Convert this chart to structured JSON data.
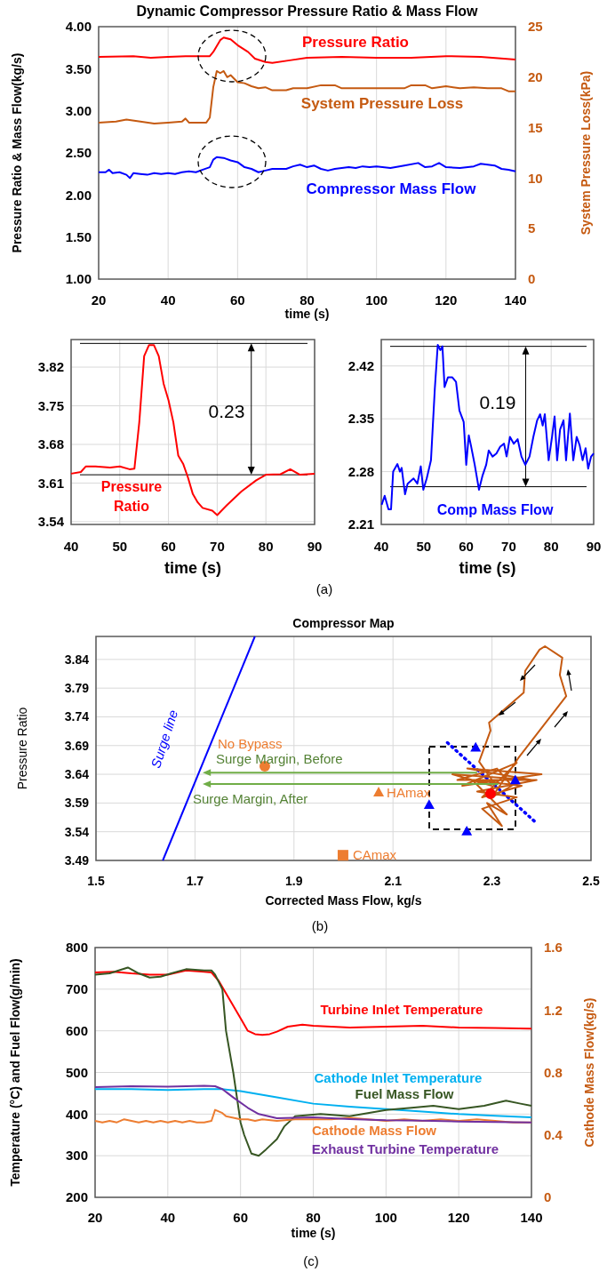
{
  "chart_data": [
    {
      "type": "line",
      "title": "Dynamic Compressor Pressure Ratio & Mass Flow",
      "xlabel": "time (s)",
      "ylabel": "Pressure Ratio & Mass Flow(kg/s)",
      "y2label": "System Pressure Loss(kPa)",
      "xlim": [
        20,
        140
      ],
      "xticks": [
        20,
        40,
        60,
        80,
        100,
        120,
        140
      ],
      "ylim": [
        1,
        4
      ],
      "yticks": [
        {
          "value": 1,
          "label": "1.00"
        },
        {
          "value": 1.5,
          "label": "1.50"
        },
        {
          "value": 2,
          "label": "2.00"
        },
        {
          "value": 2.5,
          "label": "2.50"
        },
        {
          "value": 3,
          "label": "3.00"
        },
        {
          "value": 3.5,
          "label": "3.50"
        },
        {
          "value": 4,
          "label": "4.00"
        }
      ],
      "y2lim": [
        0,
        25
      ],
      "y2ticks": [
        0,
        5,
        10,
        15,
        20,
        25
      ],
      "grid": "x",
      "series": [
        {
          "name": "Pressure Ratio",
          "color": "#ff0000",
          "x": [
            20,
            30,
            35,
            40,
            45,
            52,
            53,
            55,
            56,
            58,
            60,
            63,
            65,
            68,
            70,
            75,
            80,
            90,
            100,
            110,
            120,
            130,
            140
          ],
          "values": [
            3.64,
            3.65,
            3.63,
            3.64,
            3.65,
            3.65,
            3.7,
            3.84,
            3.87,
            3.85,
            3.78,
            3.7,
            3.62,
            3.58,
            3.57,
            3.6,
            3.63,
            3.64,
            3.63,
            3.63,
            3.65,
            3.64,
            3.61
          ]
        },
        {
          "name": "System Pressure Loss",
          "color": "#c55a11",
          "axis": "y2",
          "x": [
            20,
            25,
            28,
            32,
            36,
            40,
            44,
            45,
            46,
            51,
            52,
            53,
            54,
            55,
            56,
            57,
            58,
            60,
            62,
            64,
            66,
            68,
            70,
            74,
            76,
            80,
            84,
            88,
            90,
            100,
            108,
            110,
            114,
            116,
            120,
            124,
            128,
            132,
            136,
            138,
            140
          ],
          "values": [
            15.5,
            15.6,
            15.8,
            15.6,
            15.4,
            15.5,
            15.6,
            15.9,
            15.5,
            15.5,
            16,
            19,
            20.6,
            20.4,
            20.6,
            20,
            20.2,
            19.5,
            19.4,
            19.1,
            18.9,
            19,
            18.7,
            18.7,
            18.9,
            18.9,
            19.2,
            19.2,
            18.9,
            18.9,
            18.9,
            19.2,
            19.2,
            18.9,
            19.1,
            18.9,
            19,
            18.9,
            18.9,
            18.6,
            18.6
          ]
        },
        {
          "name": "Compressor Mass Flow",
          "color": "#0000ff",
          "x": [
            20,
            22,
            23,
            24,
            26,
            28,
            29,
            30,
            32,
            34,
            36,
            38,
            40,
            42,
            44,
            46,
            48,
            50,
            52,
            53,
            54,
            56,
            58,
            60,
            62,
            64,
            66,
            68,
            70,
            72,
            74,
            76,
            78,
            80,
            82,
            84,
            86,
            88,
            90,
            92,
            94,
            96,
            98,
            100,
            104,
            108,
            112,
            114,
            116,
            118,
            120,
            124,
            128,
            130,
            132,
            134,
            136,
            138,
            140
          ],
          "values": [
            2.27,
            2.27,
            2.3,
            2.26,
            2.27,
            2.24,
            2.2,
            2.26,
            2.25,
            2.24,
            2.26,
            2.25,
            2.26,
            2.25,
            2.27,
            2.28,
            2.27,
            2.3,
            2.33,
            2.42,
            2.45,
            2.44,
            2.41,
            2.39,
            2.33,
            2.31,
            2.27,
            2.29,
            2.31,
            2.31,
            2.31,
            2.34,
            2.36,
            2.33,
            2.35,
            2.31,
            2.29,
            2.31,
            2.32,
            2.33,
            2.32,
            2.34,
            2.33,
            2.34,
            2.32,
            2.35,
            2.38,
            2.33,
            2.34,
            2.38,
            2.33,
            2.32,
            2.34,
            2.37,
            2.36,
            2.35,
            2.31,
            2.3,
            2.28
          ]
        }
      ]
    },
    {
      "type": "line",
      "xlabel": "time (s)",
      "xlim": [
        40,
        90
      ],
      "xticks": [
        40,
        50,
        60,
        70,
        80,
        90
      ],
      "ylim": [
        3.535,
        3.87
      ],
      "yticks": [
        3.54,
        3.61,
        3.68,
        3.75,
        3.82
      ],
      "grid": true,
      "ref_lines": [
        {
          "axis": "y",
          "value": 3.863
        },
        {
          "axis": "y",
          "value": 3.625
        }
      ],
      "annotations": [
        "0.23",
        "(a)"
      ],
      "series": [
        {
          "name": "Pressure Ratio",
          "color": "#ff0000",
          "x": [
            40,
            42,
            43,
            45,
            48,
            50,
            52,
            53,
            54,
            55,
            56,
            57,
            58,
            59,
            60,
            61,
            62,
            63,
            64,
            65,
            66,
            67,
            69,
            70,
            72,
            75,
            78,
            80,
            83,
            85,
            87,
            90
          ],
          "values": [
            3.627,
            3.63,
            3.64,
            3.64,
            3.638,
            3.64,
            3.635,
            3.636,
            3.72,
            3.84,
            3.86,
            3.86,
            3.84,
            3.79,
            3.76,
            3.72,
            3.66,
            3.645,
            3.62,
            3.59,
            3.575,
            3.565,
            3.56,
            3.552,
            3.57,
            3.595,
            3.615,
            3.625,
            3.626,
            3.635,
            3.625,
            3.627
          ]
        }
      ]
    },
    {
      "type": "line",
      "xlabel": "time (s)",
      "xlim": [
        40,
        90
      ],
      "xticks": [
        40,
        50,
        60,
        70,
        80,
        90
      ],
      "ylim": [
        2.21,
        2.455
      ],
      "yticks": [
        2.21,
        2.28,
        2.35,
        2.42
      ],
      "grid": true,
      "ref_lines": [
        {
          "axis": "y",
          "value": 2.446
        },
        {
          "axis": "y",
          "value": 2.26
        }
      ],
      "annotations": [
        "0.19"
      ],
      "series": [
        {
          "name": "Comp Mass Flow",
          "color": "#0000ff",
          "x": [
            40.1,
            40.8,
            41.7,
            42.3,
            42.8,
            43.8,
            44.4,
            44.8,
            45.6,
            46.2,
            47.6,
            48.5,
            49.3,
            49.9,
            50.7,
            51.7,
            52.6,
            53.3,
            53.9,
            54.4,
            54.9,
            55.7,
            56.7,
            57.6,
            58.4,
            59.4,
            60,
            60.6,
            61.1,
            62,
            63,
            63.8,
            64.7,
            65.3,
            66.2,
            67.1,
            68,
            68.9,
            69.5,
            70.3,
            71.2,
            72.1,
            73,
            73.9,
            74.9,
            75.8,
            76.7,
            77.4,
            78,
            78.5,
            79.4,
            80.2,
            80.8,
            81.4,
            82.1,
            82.9,
            83.5,
            84.4,
            85.2,
            86,
            86.7,
            87.4,
            88.1,
            88.7,
            89.4,
            90
          ],
          "values": [
            2.236,
            2.248,
            2.23,
            2.23,
            2.28,
            2.29,
            2.28,
            2.285,
            2.25,
            2.264,
            2.271,
            2.264,
            2.287,
            2.256,
            2.271,
            2.295,
            2.389,
            2.448,
            2.441,
            2.446,
            2.392,
            2.405,
            2.405,
            2.399,
            2.361,
            2.346,
            2.289,
            2.328,
            2.315,
            2.289,
            2.256,
            2.274,
            2.289,
            2.308,
            2.3,
            2.304,
            2.313,
            2.317,
            2.3,
            2.326,
            2.317,
            2.323,
            2.3,
            2.289,
            2.3,
            2.326,
            2.348,
            2.356,
            2.341,
            2.356,
            2.295,
            2.326,
            2.353,
            2.295,
            2.336,
            2.348,
            2.295,
            2.357,
            2.295,
            2.326,
            2.315,
            2.295,
            2.311,
            2.284,
            2.3,
            2.304
          ]
        }
      ]
    },
    {
      "type": "scatter",
      "title": "Compressor Map",
      "xlabel": "Corrected Mass Flow, kg/s",
      "ylabel": "Pressure Ratio",
      "xlim": [
        1.5,
        2.5
      ],
      "xticks": [
        1.5,
        1.7,
        1.9,
        2.1,
        2.3,
        2.5
      ],
      "ylim": [
        3.49,
        3.88
      ],
      "yticks": [
        3.49,
        3.54,
        3.59,
        3.64,
        3.69,
        3.74,
        3.79,
        3.84
      ],
      "grid": true,
      "annotations": [
        {
          "text": "Surge Margin, Before",
          "x": 2.27,
          "y": 3.643
        },
        {
          "text": "Surge Margin, After",
          "x": 2.313,
          "y": 3.623
        },
        "(b)"
      ],
      "series": [
        {
          "name": "Surge line",
          "type": "line",
          "color": "#0000ff",
          "x": [
            1.635,
            1.821
          ],
          "values": [
            3.49,
            3.88
          ]
        },
        {
          "type": "line",
          "color": "#0000ff",
          "line_style": "dotted",
          "x": [
            2.21,
            2.39
          ],
          "values": [
            3.695,
            3.555
          ]
        },
        {
          "type": "line",
          "color": "#c55a11",
          "x": [
            2.3,
            2.22,
            2.38,
            2.25,
            2.4,
            2.24,
            2.35,
            2.28,
            2.36,
            2.26,
            2.33,
            2.29,
            2.32,
            2.28,
            2.35,
            2.27,
            2.39,
            2.23,
            2.31,
            2.34,
            2.3,
            2.353,
            2.45,
            2.437,
            2.442,
            2.407,
            2.396,
            2.367,
            2.364,
            2.294,
            2.297,
            2.274,
            2.3
          ],
          "values": [
            3.62,
            3.64,
            3.63,
            3.65,
            3.64,
            3.62,
            3.66,
            3.6,
            3.62,
            3.63,
            3.57,
            3.59,
            3.55,
            3.58,
            3.6,
            3.61,
            3.63,
            3.63,
            3.65,
            3.62,
            3.6,
            3.668,
            3.776,
            3.813,
            3.843,
            3.863,
            3.857,
            3.82,
            3.782,
            3.73,
            3.716,
            3.662,
            3.63
          ]
        },
        {
          "color": "#0000ff",
          "marker": "triangle",
          "x": [
            2.267,
            2.347,
            2.173,
            2.249
          ],
          "values": [
            3.687,
            3.63,
            3.587,
            3.541
          ]
        },
        {
          "color": "#ff0000",
          "marker": "circle",
          "x": [
            2.297
          ],
          "values": [
            3.606
          ]
        },
        {
          "name": "No Bypass",
          "color": "#ed7d31",
          "marker": "circle",
          "x": [
            1.841
          ],
          "values": [
            3.654
          ]
        },
        {
          "name": "HAmax",
          "color": "#ed7d31",
          "marker": "triangle",
          "x": [
            2.071
          ],
          "values": [
            3.609
          ]
        },
        {
          "name": "CAmax",
          "color": "#ed7d31",
          "marker": "square",
          "x": [
            1.999
          ],
          "values": [
            3.499
          ]
        }
      ]
    },
    {
      "type": "line",
      "xlabel": "time (s)",
      "ylabel": "Temperature (°C) and Fuel Flow(g/min)",
      "y2label": "Cathode Mass Flow(kg/s)",
      "xlim": [
        20,
        140
      ],
      "xticks": [
        20,
        40,
        60,
        80,
        100,
        120,
        140
      ],
      "ylim": [
        200,
        800
      ],
      "yticks": [
        200,
        300,
        400,
        500,
        600,
        700,
        800
      ],
      "y2lim": [
        0,
        1.6
      ],
      "y2ticks": [
        0,
        0.4,
        0.8,
        1.2,
        1.6
      ],
      "grid": true,
      "annotations": [
        "(c)"
      ],
      "series": [
        {
          "name": "Turbine Inlet Temperature",
          "color": "#ff0000",
          "x": [
            20,
            25,
            30,
            35,
            40,
            45,
            50,
            52,
            54,
            56,
            58,
            60,
            62,
            64,
            66,
            68,
            70,
            73,
            77,
            80,
            90,
            100,
            110,
            120,
            130,
            140
          ],
          "values": [
            740,
            742,
            738,
            735,
            735,
            745,
            742,
            740,
            720,
            690,
            660,
            630,
            600,
            592,
            590,
            592,
            598,
            610,
            615,
            612,
            608,
            610,
            612,
            608,
            607,
            605
          ]
        },
        {
          "name": "Cathode Inlet Temperature",
          "color": "#00b0f0",
          "x": [
            20,
            30,
            40,
            50,
            55,
            60,
            70,
            80,
            90,
            100,
            110,
            120,
            130,
            140
          ],
          "values": [
            460,
            460,
            458,
            460,
            460,
            455,
            440,
            425,
            418,
            412,
            406,
            400,
            396,
            392
          ]
        },
        {
          "name": "Fuel Mass Flow",
          "color": "#375623",
          "x": [
            20,
            24,
            29,
            32,
            35,
            38,
            41,
            45,
            50,
            52,
            53,
            55,
            56,
            58,
            60,
            61,
            63,
            65,
            67,
            70,
            72,
            75,
            82,
            90,
            100,
            107,
            113,
            120,
            127,
            133,
            137,
            140
          ],
          "values": [
            735,
            738,
            752,
            738,
            728,
            730,
            738,
            748,
            745,
            745,
            735,
            700,
            600,
            500,
            380,
            350,
            305,
            300,
            315,
            340,
            370,
            395,
            400,
            395,
            410,
            415,
            420,
            412,
            420,
            432,
            425,
            420
          ]
        },
        {
          "name": "Cathode Mass Flow",
          "color": "#ed7d31",
          "axis": "y2",
          "x": [
            20,
            22,
            24,
            26,
            28,
            30,
            32,
            34,
            36,
            38,
            40,
            42,
            44,
            46,
            48,
            50,
            52,
            53,
            55,
            56,
            58,
            60,
            62,
            64,
            66,
            70,
            75,
            80,
            85,
            90,
            95,
            100,
            105,
            110,
            115,
            120,
            125,
            130,
            135,
            140
          ],
          "values": [
            0.49,
            0.48,
            0.49,
            0.48,
            0.5,
            0.49,
            0.48,
            0.49,
            0.48,
            0.49,
            0.48,
            0.49,
            0.48,
            0.49,
            0.48,
            0.48,
            0.49,
            0.56,
            0.54,
            0.52,
            0.51,
            0.5,
            0.5,
            0.49,
            0.5,
            0.49,
            0.5,
            0.5,
            0.5,
            0.51,
            0.5,
            0.49,
            0.5,
            0.49,
            0.5,
            0.49,
            0.5,
            0.49,
            0.48,
            0.48
          ]
        },
        {
          "name": "Exhaust Turbine Temperature",
          "color": "#7030a0",
          "x": [
            20,
            30,
            40,
            50,
            53,
            55,
            58,
            62,
            65,
            70,
            80,
            90,
            100,
            110,
            120,
            130,
            140
          ],
          "values": [
            465,
            467,
            466,
            468,
            467,
            460,
            440,
            415,
            400,
            390,
            392,
            388,
            385,
            384,
            382,
            381,
            380
          ]
        }
      ]
    }
  ]
}
